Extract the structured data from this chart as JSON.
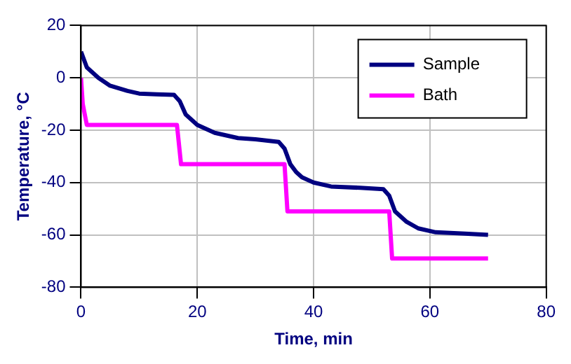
{
  "chart_data": {
    "type": "line",
    "xlabel": "Time, min",
    "ylabel": "Temperature, °C",
    "xlim": [
      0,
      80
    ],
    "xticks": [
      0,
      20,
      40,
      60,
      80
    ],
    "ylim": [
      -80,
      20
    ],
    "yticks": [
      -80,
      -60,
      -40,
      -20,
      0,
      20
    ],
    "grid": true,
    "legend": "top right",
    "marker": "none",
    "line_style": "solid",
    "series": [
      {
        "name": "Sample",
        "color": "#000080",
        "x": [
          0,
          0.5,
          1,
          2,
          3,
          5,
          8,
          10,
          13,
          16,
          17,
          18,
          19,
          20,
          23,
          27,
          30,
          34,
          35,
          36,
          37,
          38,
          40,
          43,
          48,
          52,
          53,
          54,
          55,
          56,
          58,
          61,
          66,
          70
        ],
        "values": [
          10,
          7,
          4,
          2,
          0,
          -3,
          -5,
          -6,
          -6.3,
          -6.5,
          -9,
          -14,
          -16,
          -18,
          -21,
          -23,
          -23.5,
          -24.5,
          -27,
          -33,
          -36,
          -38,
          -40,
          -41.5,
          -42,
          -42.5,
          -45,
          -51,
          -53,
          -55,
          -57.5,
          -59,
          -59.5,
          -60
        ]
      },
      {
        "name": "Bath",
        "color": "#ff00ff",
        "x": [
          0,
          0.3,
          1,
          16.5,
          17.2,
          35,
          35.5,
          53,
          53.5,
          70
        ],
        "values": [
          0,
          -10,
          -18,
          -18,
          -33,
          -33,
          -51,
          -51,
          -69,
          -69
        ]
      }
    ]
  }
}
